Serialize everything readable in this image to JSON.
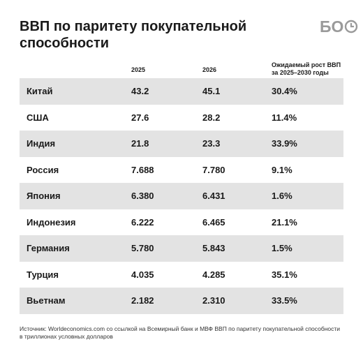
{
  "title": "ВВП по паритету покупательной способности",
  "logo_text": "БО",
  "chart_data": {
    "type": "table",
    "columns": [
      "",
      "2025",
      "2026",
      "Ожидаемый рост ВВП за 2025–2030 годы"
    ],
    "rows": [
      {
        "country": "Китай",
        "y2025": "43.2",
        "y2026": "45.1",
        "growth": "30.4%"
      },
      {
        "country": "США",
        "y2025": "27.6",
        "y2026": "28.2",
        "growth": "11.4%"
      },
      {
        "country": "Индия",
        "y2025": "21.8",
        "y2026": "23.3",
        "growth": "33.9%"
      },
      {
        "country": "Россия",
        "y2025": "7.688",
        "y2026": "7.780",
        "growth": "9.1%"
      },
      {
        "country": "Япония",
        "y2025": "6.380",
        "y2026": "6.431",
        "growth": "1.6%"
      },
      {
        "country": "Индонезия",
        "y2025": "6.222",
        "y2026": "6.465",
        "growth": "21.1%"
      },
      {
        "country": "Германия",
        "y2025": "5.780",
        "y2026": "5.843",
        "growth": "1.5%"
      },
      {
        "country": "Турция",
        "y2025": "4.035",
        "y2026": "4.285",
        "growth": "35.1%"
      },
      {
        "country": "Вьетнам",
        "y2025": "2.182",
        "y2026": "2.310",
        "growth": "33.5%"
      }
    ]
  },
  "source_line1": "Источник: Worldeconomics.com со ссылкой на Всемирный банк и МВФ ВВП по паритету покупательной способности",
  "source_line2": "в триллионах условных долларов",
  "colors": {
    "row_shade": "#e3e3e3",
    "logo": "#9a9a9a",
    "text": "#1a1a1a"
  }
}
